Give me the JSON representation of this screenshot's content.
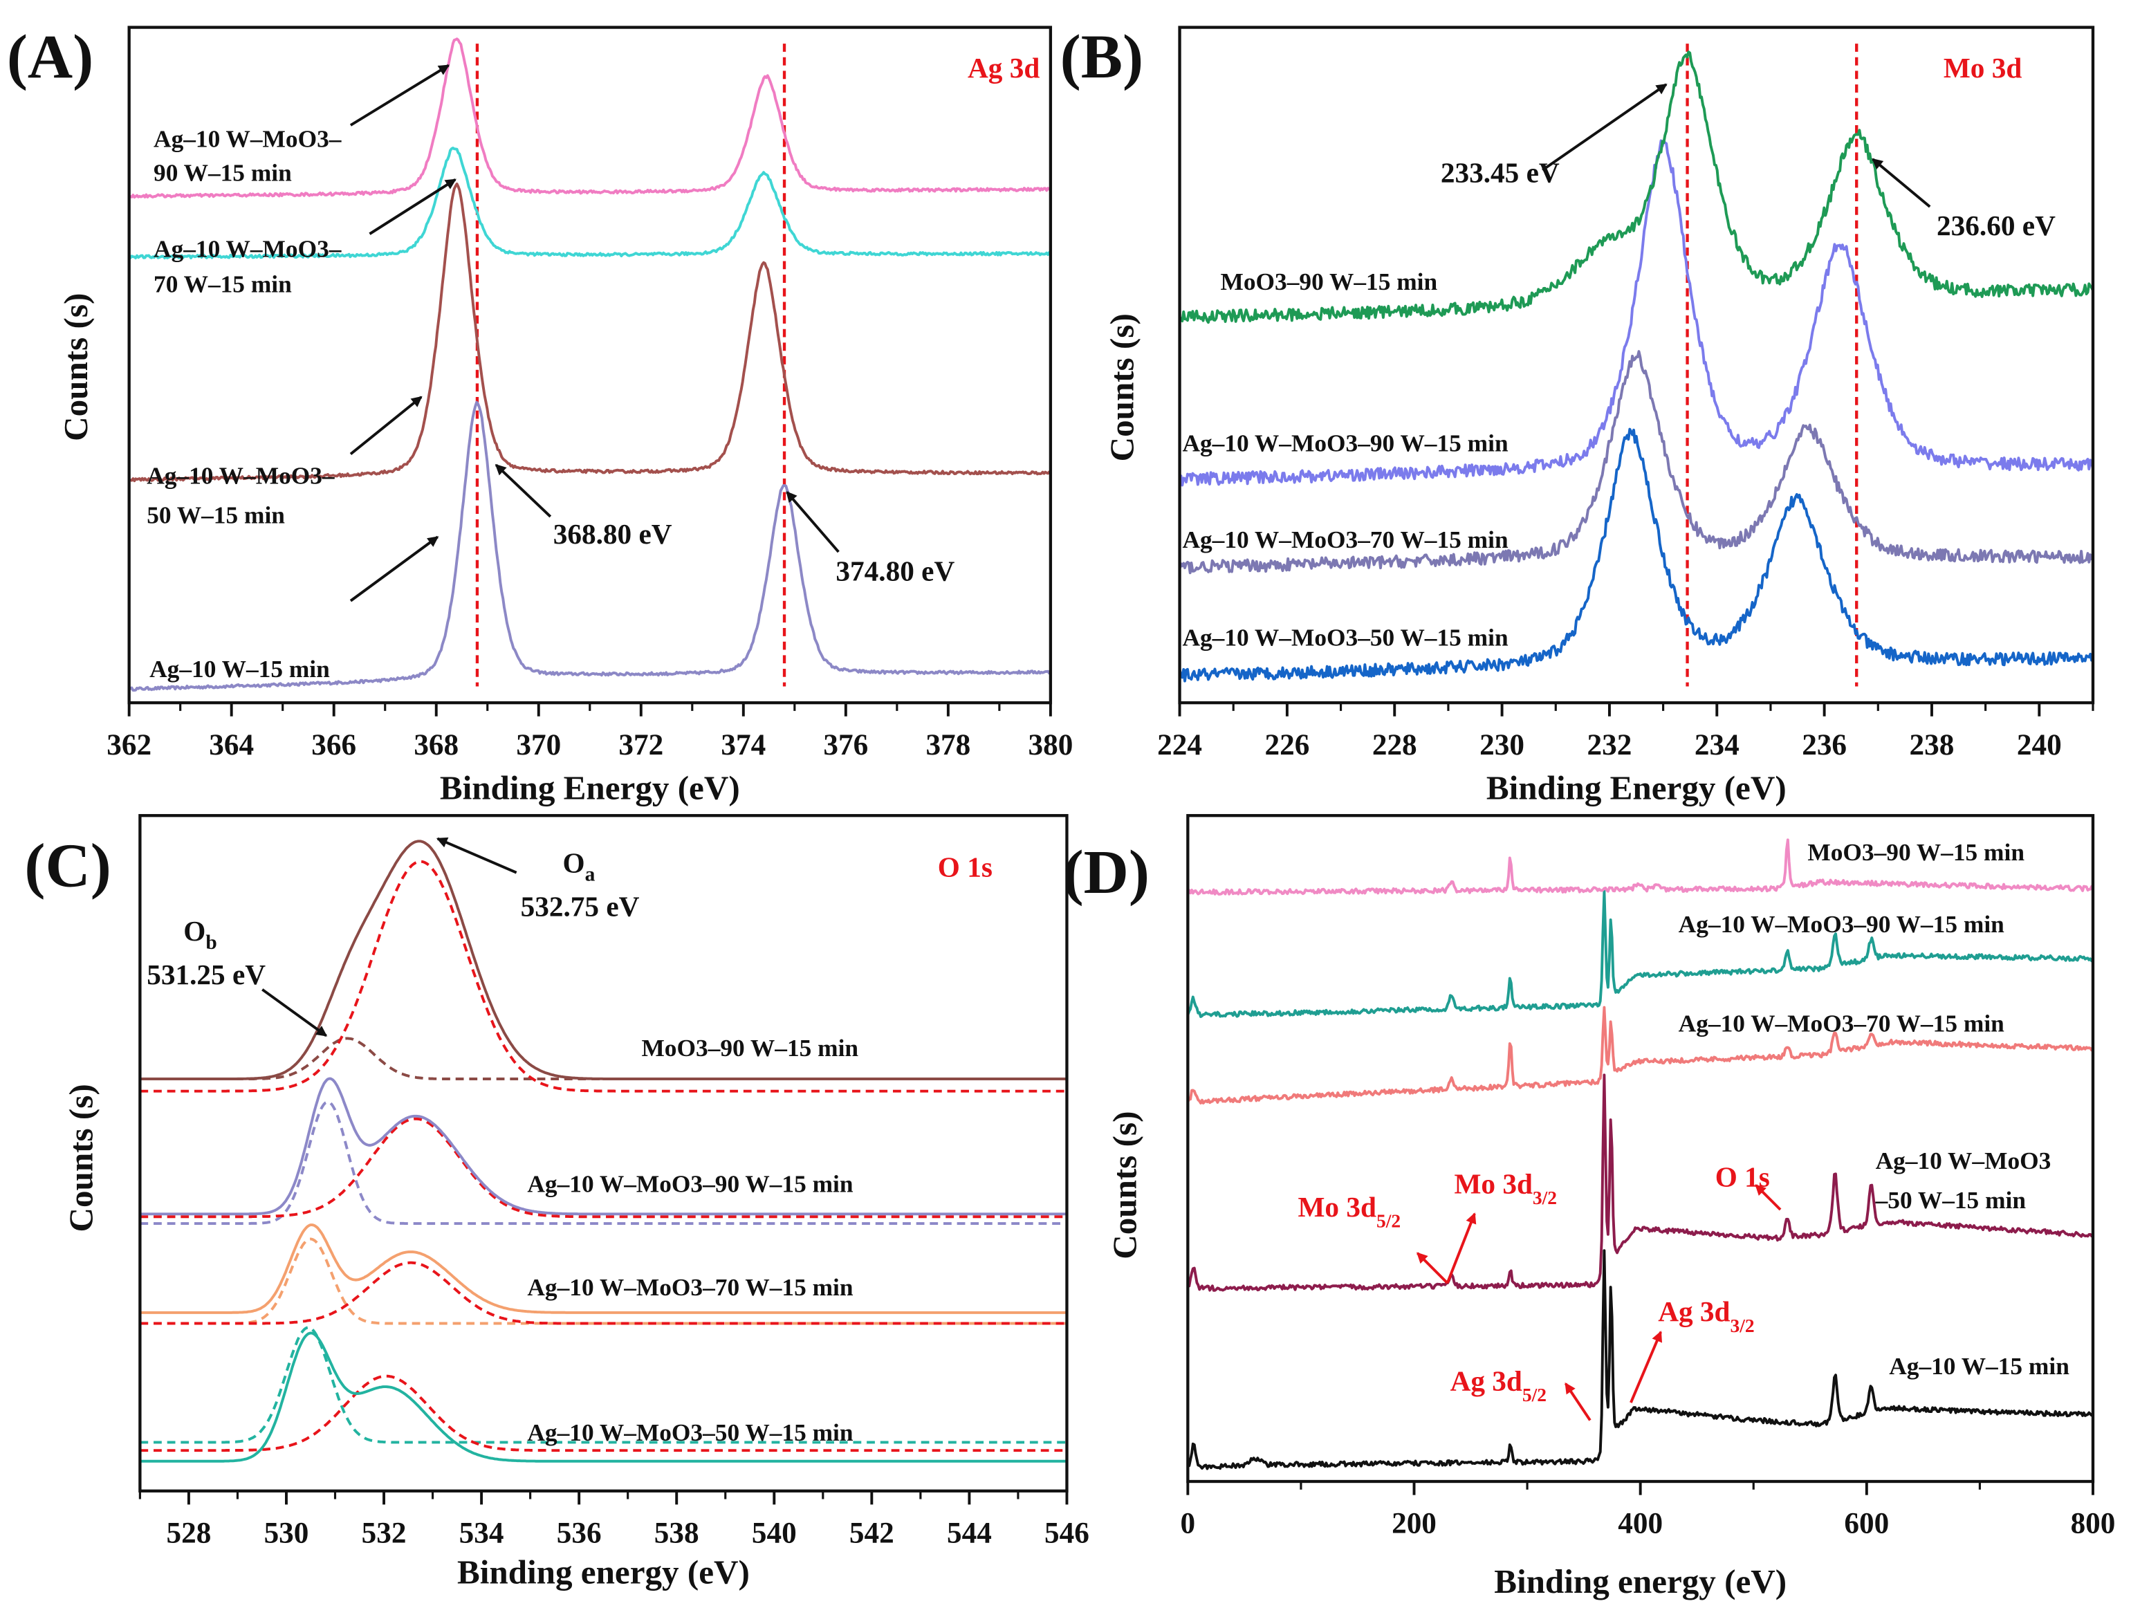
{
  "chart_data": [
    {
      "panel_label": "(A)",
      "type": "line",
      "title": "Ag 3d",
      "xlabel": "Binding Energy (eV)",
      "ylabel": "Counts (s)",
      "xlim": [
        362,
        380
      ],
      "xticks": [
        362,
        364,
        366,
        368,
        370,
        372,
        374,
        376,
        378,
        380
      ],
      "minor_step": 1,
      "ylim": [
        0,
        100
      ],
      "eta": 0.35,
      "noise": 0.2,
      "reference_lines": [
        368.8,
        374.8
      ],
      "annotations": {
        "peak1": "368.80 eV",
        "peak2": "374.80 eV"
      },
      "series": [
        {
          "label_lines": [
            "Ag–10 W–15 min"
          ],
          "color": "#8c88c6",
          "baseline": [
            [
              362,
              2
            ],
            [
              367,
              3
            ],
            [
              371,
              4
            ],
            [
              380,
              4.5
            ]
          ],
          "peaks": [
            [
              368.8,
              41,
              0.33
            ],
            [
              374.8,
              28,
              0.33
            ]
          ]
        },
        {
          "label_lines": [
            "Ag–10 W–MoO3–",
            "50 W–15 min"
          ],
          "color": "#a3504d",
          "baseline": [
            [
              362,
              33
            ],
            [
              367,
              33.5
            ],
            [
              371,
              34
            ],
            [
              380,
              34
            ]
          ],
          "peaks": [
            [
              368.4,
              43,
              0.35
            ],
            [
              374.4,
              31,
              0.35
            ]
          ]
        },
        {
          "label_lines": [
            "Ag–10 W–MoO3–",
            "70 W–15 min"
          ],
          "color": "#3fd6d4",
          "baseline": [
            [
              362,
              66
            ],
            [
              380,
              66.5
            ]
          ],
          "peaks": [
            [
              368.35,
              16,
              0.35
            ],
            [
              374.4,
              12,
              0.35
            ]
          ]
        },
        {
          "label_lines": [
            "Ag–10 W–MoO3–",
            "90 W–15 min"
          ],
          "color": "#f07cc2",
          "baseline": [
            [
              362,
              75
            ],
            [
              380,
              76
            ]
          ],
          "peaks": [
            [
              368.4,
              23,
              0.33
            ],
            [
              374.45,
              17,
              0.33
            ]
          ]
        }
      ]
    },
    {
      "panel_label": "(B)",
      "type": "line",
      "title": "Mo 3d",
      "xlabel": "Binding Energy (eV)",
      "ylabel": "Counts (s)",
      "xlim": [
        224,
        241
      ],
      "xticks": [
        224,
        226,
        228,
        230,
        232,
        234,
        236,
        238,
        240
      ],
      "minor_step": 1,
      "ylim": [
        0,
        100
      ],
      "eta": 0.5,
      "noise": 0.9,
      "reference_lines": [
        233.45,
        236.6
      ],
      "annotations": {
        "peak1": "233.45 eV",
        "peak2": "236.60 eV"
      },
      "series": [
        {
          "label_lines": [
            "Ag–10 W–MoO3–50 W–15 min"
          ],
          "color": "#1565c8",
          "baseline": [
            [
              224,
              4
            ],
            [
              230,
              5
            ],
            [
              234,
              6
            ],
            [
              238,
              6
            ],
            [
              241,
              6.5
            ]
          ],
          "peaks": [
            [
              232.4,
              34,
              0.55
            ],
            [
              235.5,
              24,
              0.6
            ]
          ]
        },
        {
          "label_lines": [
            "Ag–10 W–MoO3–70 W–15 min"
          ],
          "color": "#7c78b2",
          "baseline": [
            [
              224,
              20
            ],
            [
              230,
              21
            ],
            [
              241,
              21.5
            ]
          ],
          "peaks": [
            [
              232.5,
              30,
              0.55
            ],
            [
              235.7,
              19,
              0.6
            ]
          ]
        },
        {
          "label_lines": [
            "Ag–10 W–MoO3–90 W–15 min"
          ],
          "color": "#7b7bec",
          "baseline": [
            [
              224,
              33
            ],
            [
              230,
              34
            ],
            [
              241,
              35
            ]
          ],
          "peaks": [
            [
              233.0,
              48,
              0.55
            ],
            [
              236.3,
              33,
              0.6
            ]
          ]
        },
        {
          "label_lines": [
            "MoO3–90 W–15 min"
          ],
          "color": "#1e9a55",
          "baseline": [
            [
              224,
              57
            ],
            [
              230,
              58
            ],
            [
              238,
              60
            ],
            [
              241,
              61
            ]
          ],
          "peaks": [
            [
              231.9,
              8,
              0.7
            ],
            [
              233.45,
              36,
              0.55
            ],
            [
              236.6,
              24,
              0.6
            ]
          ]
        }
      ]
    },
    {
      "panel_label": "(C)",
      "type": "line",
      "title": "O 1s",
      "xlabel": "Binding energy (eV)",
      "ylabel": "Counts (s)",
      "xlim": [
        527,
        546
      ],
      "xticks": [
        528,
        530,
        532,
        534,
        536,
        538,
        540,
        542,
        544,
        546
      ],
      "minor_step": 1,
      "ylim": [
        0,
        100
      ],
      "eta": 0,
      "noise": 0,
      "annotations": {
        "Oa": {
          "main": "O",
          "sub": "a",
          "value": "532.75 eV"
        },
        "Ob": {
          "main": "O",
          "sub": "b",
          "value": "531.25 eV"
        }
      },
      "series": [
        {
          "label_lines": [
            "Ag–10 W–MoO3–50 W–15 min"
          ],
          "color": "#22b3a0",
          "baseline": [
            [
              527,
              4.4
            ],
            [
              546,
              4.4
            ]
          ],
          "peaks": [
            [
              530.45,
              17,
              0.45
            ],
            [
              532.05,
              11,
              0.85
            ]
          ],
          "components": [
            {
              "peak": [
                530.45,
                17,
                0.45
              ],
              "color": "#22b3a0",
              "offset": 2.8
            },
            {
              "peak": [
                532.05,
                11,
                0.85
              ],
              "color": "#e8141a",
              "offset": 1.6
            }
          ]
        },
        {
          "label_lines": [
            "Ag–10 W–MoO3–70 W–15 min"
          ],
          "color": "#f4a06e",
          "baseline": [
            [
              527,
              26.4
            ],
            [
              546,
              26.4
            ]
          ],
          "peaks": [
            [
              530.5,
              12.5,
              0.42
            ],
            [
              532.55,
              9,
              0.85
            ]
          ],
          "components": [
            {
              "peak": [
                530.5,
                12.5,
                0.42
              ],
              "color": "#f4a06e",
              "offset": -1.6
            },
            {
              "peak": [
                532.55,
                9,
                0.85
              ],
              "color": "#e8141a",
              "offset": -1.6
            }
          ]
        },
        {
          "label_lines": [
            "Ag–10 W–MoO3–90 W–15 min"
          ],
          "color": "#8c88c8",
          "baseline": [
            [
              527,
              41
            ],
            [
              546,
              41
            ]
          ],
          "peaks": [
            [
              530.85,
              18,
              0.4
            ],
            [
              532.65,
              14.5,
              0.9
            ]
          ],
          "components": [
            {
              "peak": [
                530.85,
                18,
                0.4
              ],
              "color": "#8c88c8",
              "offset": -1.4
            },
            {
              "peak": [
                532.65,
                14.5,
                0.9
              ],
              "color": "#e8141a",
              "offset": -0.4
            }
          ]
        },
        {
          "label_lines": [
            "MoO3–90 W–15 min"
          ],
          "color": "#8b4a45",
          "baseline": [
            [
              527,
              61
            ],
            [
              546,
              61
            ]
          ],
          "peaks": [
            [
              531.25,
              8,
              0.55
            ],
            [
              532.75,
              35,
              0.95
            ]
          ],
          "components": [
            {
              "peak": [
                531.25,
                6,
                0.55
              ],
              "color": "#8b4a45",
              "offset": 0
            },
            {
              "peak": [
                532.75,
                34,
                0.95
              ],
              "color": "#e8141a",
              "offset": -1.8
            }
          ]
        }
      ]
    },
    {
      "panel_label": "(D)",
      "type": "line",
      "xlabel": "Binding energy (eV)",
      "ylabel": "Counts (s)",
      "xlim": [
        0,
        800
      ],
      "xticks": [
        0,
        200,
        400,
        600,
        800
      ],
      "minor_step": 100,
      "ylim": [
        0,
        100
      ],
      "eta": 0.3,
      "noise": 0.35,
      "annotations": {
        "mo_5_2": {
          "main": "Mo 3d",
          "sub": "5/2"
        },
        "mo_3_2": {
          "main": "Mo 3d",
          "sub": "3/2"
        },
        "o_1s": "O 1s",
        "ag_5_2": {
          "main": "Ag 3d",
          "sub": "5/2"
        },
        "ag_3_2": {
          "main": "Ag 3d",
          "sub": "3/2"
        }
      },
      "series": [
        {
          "label_lines": [
            "Ag–10 W–15 min"
          ],
          "color": "#111111",
          "baseline": [
            [
              0,
              2
            ],
            [
              50,
              2.5
            ],
            [
              60,
              3.5
            ],
            [
              70,
              2.5
            ],
            [
              365,
              3
            ],
            [
              370,
              6
            ],
            [
              395,
              11
            ],
            [
              480,
              9.5
            ],
            [
              560,
              8.5
            ],
            [
              620,
              11
            ],
            [
              700,
              10.5
            ],
            [
              800,
              10
            ]
          ],
          "peaks": [
            [
              5,
              3.5,
              2
            ],
            [
              285,
              3,
              1.3
            ],
            [
              368,
              30,
              1.3
            ],
            [
              374,
              23,
              1.3
            ],
            [
              572,
              7,
              2.2
            ],
            [
              604,
              4,
              2.2
            ]
          ]
        },
        {
          "label_lines": [
            "Ag–10 W–MoO3",
            "–50 W–15 min"
          ],
          "color": "#8d1c4c",
          "baseline": [
            [
              0,
              29
            ],
            [
              365,
              29.5
            ],
            [
              370,
              32
            ],
            [
              395,
              38
            ],
            [
              520,
              36.5
            ],
            [
              560,
              37
            ],
            [
              620,
              39
            ],
            [
              800,
              37
            ]
          ],
          "peaks": [
            [
              5,
              3,
              2
            ],
            [
              233,
              1.5,
              2
            ],
            [
              285,
              2.5,
              1.3
            ],
            [
              368,
              30,
              1.3
            ],
            [
              374,
              22,
              1.3
            ],
            [
              530,
              3,
              2
            ],
            [
              572,
              9,
              2.2
            ],
            [
              604,
              6,
              2.2
            ]
          ]
        },
        {
          "label_lines": [
            "Ag–10 W–MoO3–70 W–15 min"
          ],
          "color": "#f07a7a",
          "baseline": [
            [
              0,
              57
            ],
            [
              365,
              60
            ],
            [
              372,
              61
            ],
            [
              395,
              63
            ],
            [
              560,
              64
            ],
            [
              620,
              66
            ],
            [
              800,
              65
            ]
          ],
          "peaks": [
            [
              5,
              2,
              2
            ],
            [
              233,
              1.5,
              2
            ],
            [
              285,
              7,
              1.3
            ],
            [
              368,
              11,
              1.3
            ],
            [
              374,
              8,
              1.3
            ],
            [
              530,
              1.5,
              2
            ],
            [
              572,
              3,
              2.2
            ],
            [
              604,
              2,
              2.2
            ]
          ]
        },
        {
          "label_lines": [
            "Ag–10 W–MoO3–90 W–15 min"
          ],
          "color": "#1f9e92",
          "baseline": [
            [
              0,
              70
            ],
            [
              365,
              71.5
            ],
            [
              372,
              72
            ],
            [
              395,
              76
            ],
            [
              560,
              77
            ],
            [
              620,
              79
            ],
            [
              800,
              78.5
            ]
          ],
          "peaks": [
            [
              5,
              2.5,
              2
            ],
            [
              233,
              2,
              2
            ],
            [
              285,
              4.5,
              1.3
            ],
            [
              368,
              17,
              1.3
            ],
            [
              374,
              12,
              1.3
            ],
            [
              530,
              3,
              2
            ],
            [
              572,
              5,
              2.2
            ],
            [
              604,
              3,
              2.2
            ]
          ]
        },
        {
          "label_lines": [
            "MoO3–90 W–15 min"
          ],
          "color": "#f08ac4",
          "baseline": [
            [
              0,
              88.5
            ],
            [
              520,
              89
            ],
            [
              560,
              90
            ],
            [
              800,
              89
            ]
          ],
          "peaks": [
            [
              233,
              1.5,
              2
            ],
            [
              285,
              5,
              1.3
            ],
            [
              398,
              1,
              3
            ],
            [
              415,
              0.8,
              3
            ],
            [
              530,
              7,
              1.5
            ]
          ]
        }
      ]
    }
  ]
}
